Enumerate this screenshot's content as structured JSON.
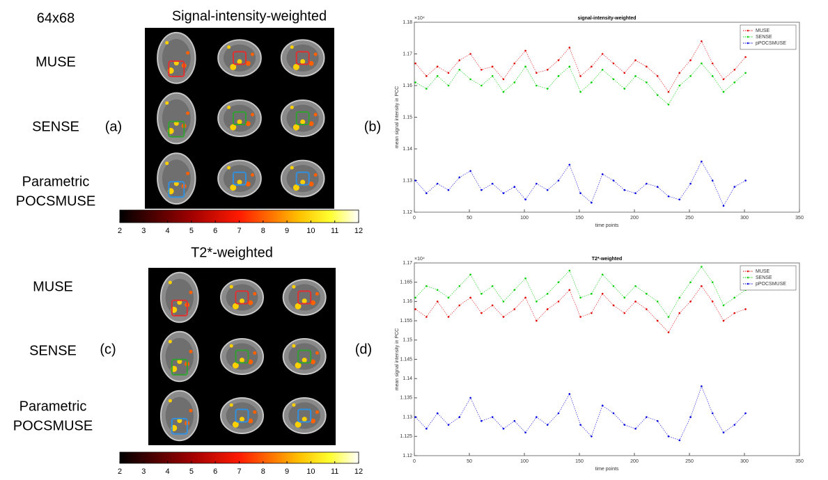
{
  "panel_a": {
    "matrix": "64x68",
    "title": "Signal-intensity-weighted",
    "label": "(a)",
    "rows": [
      [
        "MUSE"
      ],
      [
        "SENSE"
      ],
      [
        "Parametric",
        "POCSMUSE"
      ]
    ],
    "colorbar": {
      "lim": [
        2,
        12
      ],
      "ticks": [
        2,
        3,
        4,
        5,
        6,
        7,
        8,
        9,
        10,
        11,
        12
      ]
    }
  },
  "panel_c": {
    "title": "T2*-weighted",
    "label": "(c)",
    "rows": [
      [
        "MUSE"
      ],
      [
        "SENSE"
      ],
      [
        "Parametric",
        "POCSMUSE"
      ]
    ],
    "colorbar": {
      "lim": [
        2,
        12
      ],
      "ticks": [
        2,
        3,
        4,
        5,
        6,
        7,
        8,
        9,
        10,
        11,
        12
      ]
    }
  },
  "chart_data": [
    {
      "type": "line",
      "panel_label": "(b)",
      "title": "signal-intensity-weighted",
      "xlabel": "time points",
      "ylabel": "mean signal intensity in PCC",
      "y_multiplier": "×10⁴",
      "xlim": [
        0,
        350
      ],
      "xticks": [
        0,
        50,
        100,
        150,
        200,
        250,
        300,
        350
      ],
      "ylim": [
        1.12,
        1.18
      ],
      "yticks": [
        1.12,
        1.13,
        1.14,
        1.15,
        1.16,
        1.17,
        1.18
      ],
      "legend": "upper right",
      "x": [
        1,
        11,
        21,
        31,
        41,
        51,
        61,
        71,
        81,
        91,
        101,
        111,
        121,
        131,
        141,
        151,
        161,
        171,
        181,
        191,
        201,
        211,
        221,
        231,
        241,
        251,
        261,
        271,
        281,
        291,
        301
      ],
      "series": [
        {
          "name": "MUSE",
          "color": "#e00000",
          "values": [
            1.167,
            1.163,
            1.166,
            1.164,
            1.168,
            1.17,
            1.165,
            1.166,
            1.162,
            1.167,
            1.171,
            1.164,
            1.165,
            1.168,
            1.172,
            1.163,
            1.166,
            1.17,
            1.167,
            1.164,
            1.168,
            1.166,
            1.163,
            1.158,
            1.164,
            1.168,
            1.174,
            1.167,
            1.162,
            1.165,
            1.169
          ]
        },
        {
          "name": "SENSE",
          "color": "#00d000",
          "values": [
            1.161,
            1.159,
            1.163,
            1.16,
            1.165,
            1.162,
            1.16,
            1.163,
            1.158,
            1.161,
            1.166,
            1.16,
            1.159,
            1.163,
            1.166,
            1.158,
            1.161,
            1.165,
            1.162,
            1.159,
            1.163,
            1.161,
            1.157,
            1.154,
            1.16,
            1.163,
            1.167,
            1.163,
            1.158,
            1.161,
            1.164
          ]
        },
        {
          "name": "pPOCSMUSE",
          "color": "#0000e0",
          "values": [
            1.13,
            1.126,
            1.129,
            1.127,
            1.131,
            1.133,
            1.127,
            1.129,
            1.126,
            1.128,
            1.124,
            1.129,
            1.127,
            1.13,
            1.135,
            1.126,
            1.123,
            1.132,
            1.13,
            1.127,
            1.126,
            1.129,
            1.128,
            1.125,
            1.124,
            1.129,
            1.136,
            1.13,
            1.122,
            1.128,
            1.13
          ]
        }
      ]
    },
    {
      "type": "line",
      "panel_label": "(d)",
      "title": "T2*-weighted",
      "xlabel": "time points",
      "ylabel": "mean signal intensity in PCC",
      "y_multiplier": "×10⁴",
      "xlim": [
        0,
        350
      ],
      "xticks": [
        0,
        50,
        100,
        150,
        200,
        250,
        300,
        350
      ],
      "ylim": [
        1.12,
        1.17
      ],
      "yticks": [
        1.12,
        1.125,
        1.13,
        1.135,
        1.14,
        1.145,
        1.15,
        1.155,
        1.16,
        1.165,
        1.17
      ],
      "legend": "upper right",
      "x": [
        1,
        11,
        21,
        31,
        41,
        51,
        61,
        71,
        81,
        91,
        101,
        111,
        121,
        131,
        141,
        151,
        161,
        171,
        181,
        191,
        201,
        211,
        221,
        231,
        241,
        251,
        261,
        271,
        281,
        291,
        301
      ],
      "series": [
        {
          "name": "MUSE",
          "color": "#e00000",
          "values": [
            1.158,
            1.156,
            1.16,
            1.156,
            1.159,
            1.161,
            1.157,
            1.159,
            1.156,
            1.158,
            1.161,
            1.155,
            1.158,
            1.16,
            1.163,
            1.156,
            1.157,
            1.162,
            1.159,
            1.157,
            1.16,
            1.158,
            1.155,
            1.152,
            1.157,
            1.16,
            1.164,
            1.16,
            1.155,
            1.157,
            1.158
          ]
        },
        {
          "name": "SENSE",
          "color": "#00d000",
          "values": [
            1.161,
            1.164,
            1.163,
            1.161,
            1.164,
            1.167,
            1.162,
            1.164,
            1.16,
            1.163,
            1.166,
            1.16,
            1.162,
            1.165,
            1.168,
            1.161,
            1.162,
            1.167,
            1.164,
            1.161,
            1.164,
            1.162,
            1.16,
            1.156,
            1.161,
            1.165,
            1.169,
            1.165,
            1.159,
            1.161,
            1.163
          ]
        },
        {
          "name": "pPOCSMUSE",
          "color": "#0000e0",
          "values": [
            1.13,
            1.127,
            1.131,
            1.128,
            1.13,
            1.135,
            1.129,
            1.13,
            1.127,
            1.129,
            1.126,
            1.13,
            1.128,
            1.131,
            1.136,
            1.128,
            1.125,
            1.133,
            1.131,
            1.128,
            1.127,
            1.13,
            1.129,
            1.125,
            1.124,
            1.13,
            1.138,
            1.131,
            1.126,
            1.128,
            1.131
          ]
        }
      ]
    }
  ]
}
